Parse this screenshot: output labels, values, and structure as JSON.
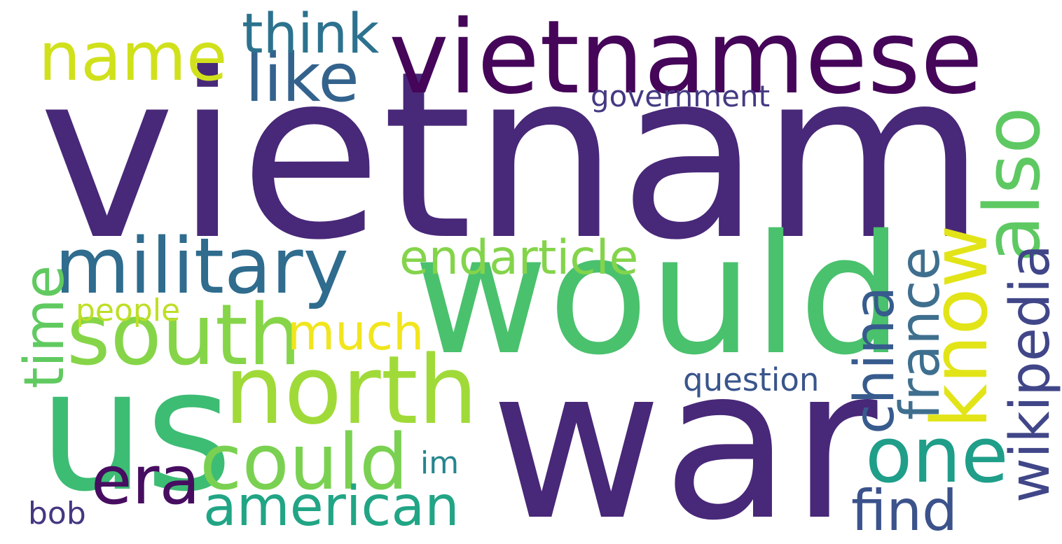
{
  "words": [
    {
      "text": "vietnam",
      "color": "#482878",
      "orientation": "horizontal"
    },
    {
      "text": "war",
      "color": "#482878",
      "orientation": "horizontal"
    },
    {
      "text": "would",
      "color": "#4ac16d",
      "orientation": "horizontal"
    },
    {
      "text": "us",
      "color": "#3dbc74",
      "orientation": "horizontal"
    },
    {
      "text": "vietnamese",
      "color": "#450559",
      "orientation": "horizontal"
    },
    {
      "text": "north",
      "color": "#a0da39",
      "orientation": "horizontal"
    },
    {
      "text": "south",
      "color": "#86d549",
      "orientation": "horizontal"
    },
    {
      "text": "military",
      "color": "#2f6c8e",
      "orientation": "horizontal"
    },
    {
      "text": "could",
      "color": "#7ad151",
      "orientation": "horizontal"
    },
    {
      "text": "one",
      "color": "#1f9e89",
      "orientation": "horizontal"
    },
    {
      "text": "name",
      "color": "#d0e11c",
      "orientation": "horizontal"
    },
    {
      "text": "like",
      "color": "#33638d",
      "orientation": "horizontal"
    },
    {
      "text": "era",
      "color": "#470d60",
      "orientation": "horizontal"
    },
    {
      "text": "think",
      "color": "#2c728e",
      "orientation": "horizontal"
    },
    {
      "text": "endarticle",
      "color": "#84d44b",
      "orientation": "horizontal"
    },
    {
      "text": "much",
      "color": "#f1e51d",
      "orientation": "horizontal"
    },
    {
      "text": "american",
      "color": "#21a585",
      "orientation": "horizontal"
    },
    {
      "text": "find",
      "color": "#3b528b",
      "orientation": "horizontal"
    },
    {
      "text": "government",
      "color": "#443a83",
      "orientation": "horizontal"
    },
    {
      "text": "question",
      "color": "#39558c",
      "orientation": "horizontal"
    },
    {
      "text": "people",
      "color": "#bddf26",
      "orientation": "horizontal"
    },
    {
      "text": "im",
      "color": "#25858e",
      "orientation": "horizontal"
    },
    {
      "text": "bob",
      "color": "#453781",
      "orientation": "horizontal"
    },
    {
      "text": "also",
      "color": "#5ec962",
      "orientation": "vertical"
    },
    {
      "text": "know",
      "color": "#e2e418",
      "orientation": "vertical"
    },
    {
      "text": "wikipedia",
      "color": "#404688",
      "orientation": "vertical"
    },
    {
      "text": "france",
      "color": "#3f6f8e",
      "orientation": "vertical"
    },
    {
      "text": "china",
      "color": "#375b8d",
      "orientation": "vertical"
    },
    {
      "text": "time",
      "color": "#60ca60",
      "orientation": "vertical"
    }
  ]
}
